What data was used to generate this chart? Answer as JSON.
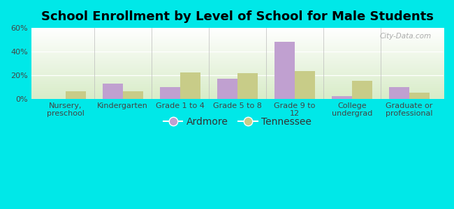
{
  "title": "School Enrollment by Level of School for Male Students",
  "categories": [
    "Nursery,\npreschool",
    "Kindergarten",
    "Grade 1 to 4",
    "Grade 5 to 8",
    "Grade 9 to\n12",
    "College\nundergrad",
    "Graduate or\nprofessional"
  ],
  "ardmore": [
    0.0,
    13.0,
    10.0,
    17.0,
    48.0,
    2.5,
    10.0
  ],
  "tennessee": [
    6.5,
    6.5,
    22.5,
    21.5,
    23.5,
    15.5,
    5.5
  ],
  "ardmore_color": "#c0a0d0",
  "tennessee_color": "#c8cc88",
  "background_color": "#00e8e8",
  "plot_bg_color1": "#ffffff",
  "plot_bg_color2": "#d8ecc8",
  "ylim": [
    0,
    60
  ],
  "yticks": [
    0,
    20,
    40,
    60
  ],
  "ytick_labels": [
    "0%",
    "20%",
    "40%",
    "60%"
  ],
  "bar_width": 0.35,
  "title_fontsize": 13,
  "tick_fontsize": 8,
  "legend_fontsize": 10,
  "watermark": "City-Data.com"
}
